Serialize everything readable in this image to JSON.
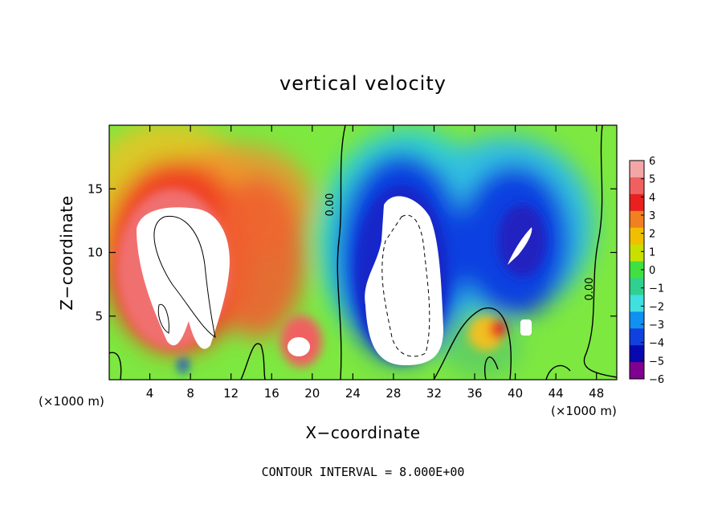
{
  "chart_data": {
    "type": "heatmap",
    "title": "vertical velocity",
    "xlabel": "X−coordinate",
    "ylabel": "Z−coordinate",
    "x_unit": "(×1000 m)",
    "x_ticks": [
      "4",
      "8",
      "12",
      "16",
      "20",
      "24",
      "28",
      "32",
      "36",
      "40",
      "44",
      "48"
    ],
    "y_ticks": [
      "5",
      "10",
      "15"
    ],
    "xlim": [
      0,
      50
    ],
    "ylim": [
      0,
      20
    ],
    "colorbar": {
      "ticks": [
        "6",
        "5",
        "4",
        "3",
        "2",
        "1",
        "0",
        "−1",
        "−2",
        "−3",
        "−4",
        "−5",
        "−6"
      ],
      "range": [
        -6,
        6
      ],
      "colors": [
        "#f4a6a6",
        "#f06060",
        "#e82020",
        "#f08020",
        "#f0c000",
        "#c8e000",
        "#40e040",
        "#30d090",
        "#40e0e0",
        "#1090f0",
        "#1040e0",
        "#0808b0",
        "#800090"
      ]
    },
    "contour_labels": [
      "0.00",
      "0.00"
    ],
    "footnote": "CONTOUR INTERVAL = 8.000E+00"
  }
}
